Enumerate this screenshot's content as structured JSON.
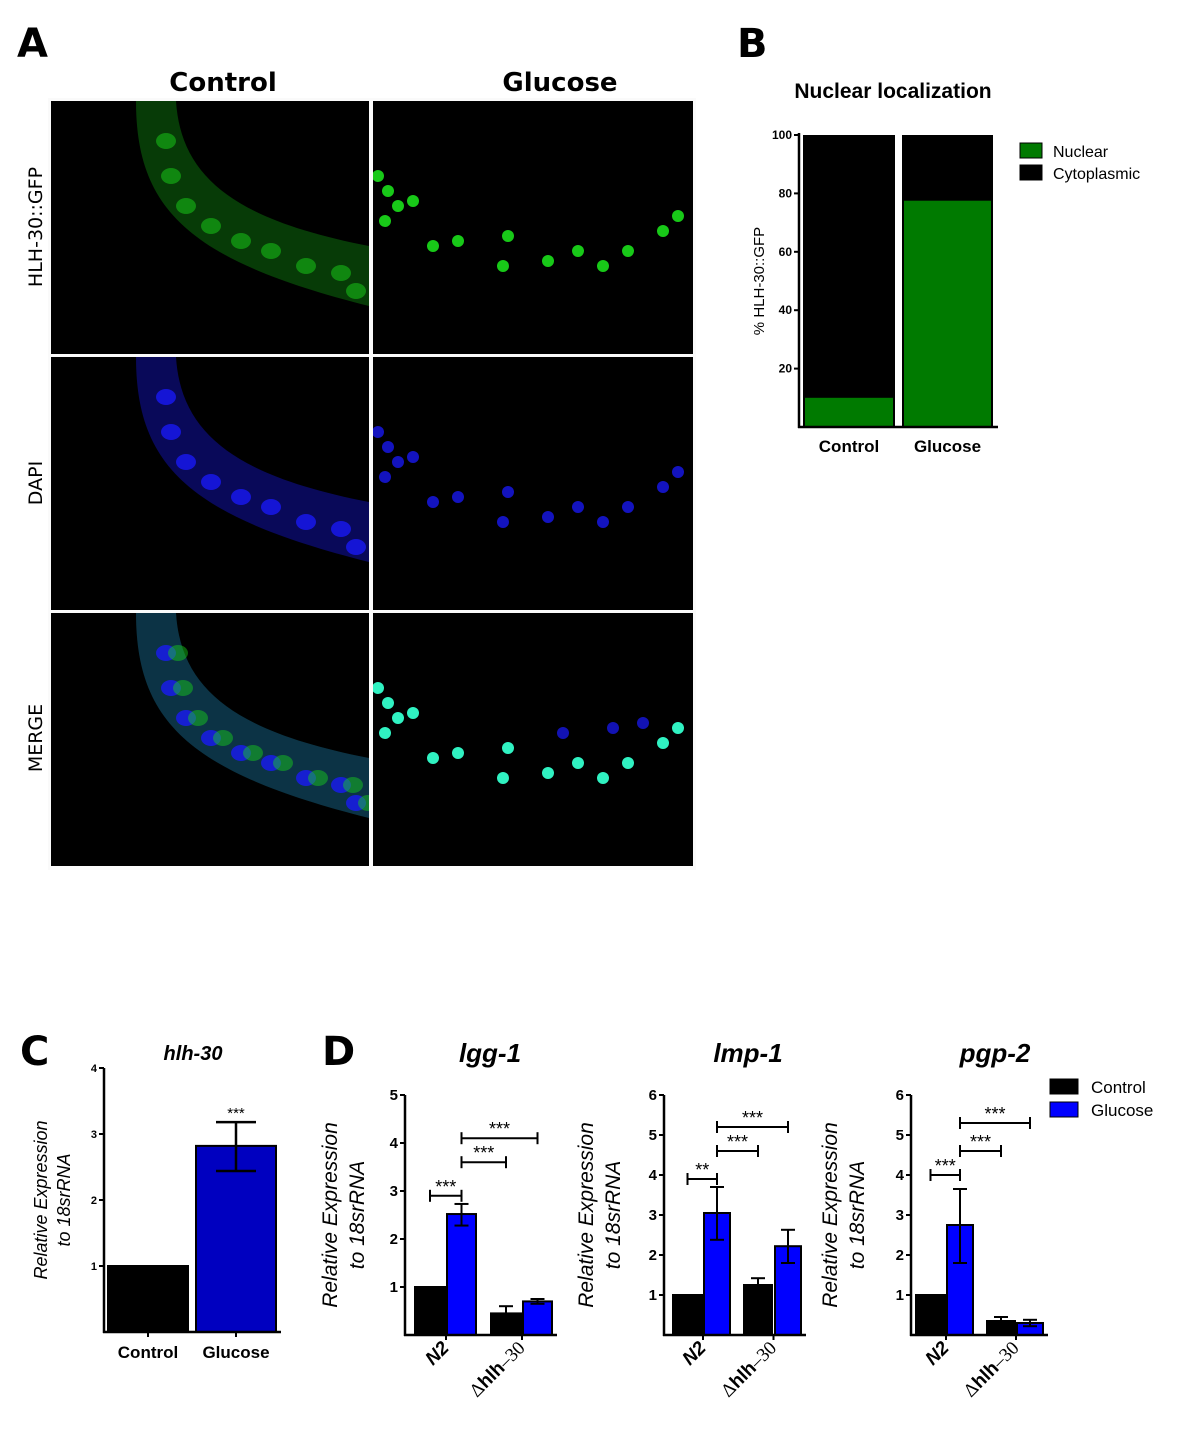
{
  "panelA": {
    "letter": "A",
    "columns": [
      "Control",
      "Glucose"
    ],
    "rows": [
      "HLH-30::GFP",
      "DAPI",
      "MERGE"
    ],
    "channel_colors": {
      "gfp": "#19d419",
      "dapi": "#1a1aff",
      "merge_nucleus": "#33ffcc"
    }
  },
  "panelB": {
    "letter": "B"
  },
  "panelC": {
    "letter": "C"
  },
  "panelD": {
    "letter": "D",
    "legend": [
      {
        "label": "Control",
        "color": "#000000"
      },
      {
        "label": "Glucose",
        "color": "#0000ff"
      }
    ]
  },
  "colors": {
    "nuclear": "#007a00",
    "cytoplasmic": "#000000",
    "control": "#000000",
    "glucoseC": "#0000c0",
    "glucoseD": "#0000ff"
  },
  "chart_data": [
    {
      "id": "B",
      "type": "bar",
      "stacked": true,
      "title": "Nuclear localization",
      "xlabel": "",
      "ylabel": "% HLH-30::GFP",
      "categories": [
        "Control",
        "Glucose"
      ],
      "series": [
        {
          "name": "Nuclear",
          "values": [
            10,
            77.5
          ]
        },
        {
          "name": "Cytoplasmic",
          "values": [
            90,
            22.5
          ]
        }
      ],
      "ylim": [
        0,
        100
      ],
      "yticks": [
        20,
        40,
        60,
        80,
        100
      ],
      "legend": [
        "Nuclear",
        "Cytoplasmic"
      ],
      "legend_position": "right"
    },
    {
      "id": "C",
      "type": "bar",
      "title": "hlh-30",
      "xlabel": "",
      "ylabel": "Relative Expression to 18srRNA",
      "ylabel_lines": [
        "Relative Expression",
        "to 18srRNA"
      ],
      "categories": [
        "Control",
        "Glucose"
      ],
      "values": [
        1.0,
        2.82
      ],
      "error": [
        null,
        [
          2.44,
          3.18
        ]
      ],
      "annotations": [
        {
          "category": "Glucose",
          "text": "***"
        }
      ],
      "ylim": [
        0,
        4
      ],
      "yticks": [
        1,
        2,
        3,
        4
      ]
    },
    {
      "id": "D1",
      "type": "bar",
      "title": "lgg-1",
      "ylabel_lines": [
        "Relative Expression",
        "to 18srRNA"
      ],
      "categories": [
        "N2",
        "Δhlh–30"
      ],
      "series": [
        {
          "name": "Control",
          "values": [
            1.0,
            0.45
          ],
          "error": [
            null,
            [
              0.45,
              0.6
            ]
          ]
        },
        {
          "name": "Glucose",
          "values": [
            2.52,
            0.7
          ],
          "error": [
            [
              2.28,
              2.73
            ],
            [
              0.65,
              0.75
            ]
          ]
        }
      ],
      "significance": [
        {
          "from": "N2-Control",
          "to": "N2-Glucose",
          "level": 2.9,
          "text": "***"
        },
        {
          "from": "N2-Glucose",
          "to": "Δhlh–30-Control",
          "level": 3.6,
          "text": "***"
        },
        {
          "from": "N2-Glucose",
          "to": "Δhlh–30-Glucose",
          "level": 4.1,
          "text": "***"
        }
      ],
      "ylim": [
        0,
        5
      ],
      "yticks": [
        1,
        2,
        3,
        4,
        5
      ]
    },
    {
      "id": "D2",
      "type": "bar",
      "title": "lmp-1",
      "ylabel_lines": [
        "Relative Expression",
        "to 18srRNA"
      ],
      "categories": [
        "N2",
        "Δhlh–30"
      ],
      "series": [
        {
          "name": "Control",
          "values": [
            1.0,
            1.25
          ],
          "error": [
            null,
            [
              1.25,
              1.42
            ]
          ]
        },
        {
          "name": "Glucose",
          "values": [
            3.05,
            2.22
          ],
          "error": [
            [
              2.38,
              3.7
            ],
            [
              1.8,
              2.63
            ]
          ]
        }
      ],
      "significance": [
        {
          "from": "N2-Control",
          "to": "N2-Glucose",
          "level": 3.9,
          "text": "**"
        },
        {
          "from": "N2-Glucose",
          "to": "Δhlh–30-Control",
          "level": 4.6,
          "text": "***"
        },
        {
          "from": "N2-Glucose",
          "to": "Δhlh–30-Glucose",
          "level": 5.2,
          "text": "***"
        }
      ],
      "ylim": [
        0,
        6
      ],
      "yticks": [
        1,
        2,
        3,
        4,
        5,
        6
      ]
    },
    {
      "id": "D3",
      "type": "bar",
      "title": "pgp-2",
      "ylabel_lines": [
        "Relative Expression",
        "to 18srRNA"
      ],
      "categories": [
        "N2",
        "Δhlh–30"
      ],
      "series": [
        {
          "name": "Control",
          "values": [
            1.0,
            0.35
          ],
          "error": [
            null,
            [
              0.35,
              0.45
            ]
          ]
        },
        {
          "name": "Glucose",
          "values": [
            2.75,
            0.3
          ],
          "error": [
            [
              1.8,
              3.65
            ],
            [
              0.22,
              0.38
            ]
          ]
        }
      ],
      "significance": [
        {
          "from": "N2-Control",
          "to": "N2-Glucose",
          "level": 4.0,
          "text": "***"
        },
        {
          "from": "N2-Glucose",
          "to": "Δhlh–30-Control",
          "level": 4.6,
          "text": "***"
        },
        {
          "from": "N2-Glucose",
          "to": "Δhlh–30-Glucose",
          "level": 5.3,
          "text": "***"
        }
      ],
      "ylim": [
        0,
        6
      ],
      "yticks": [
        1,
        2,
        3,
        4,
        5,
        6
      ]
    }
  ]
}
